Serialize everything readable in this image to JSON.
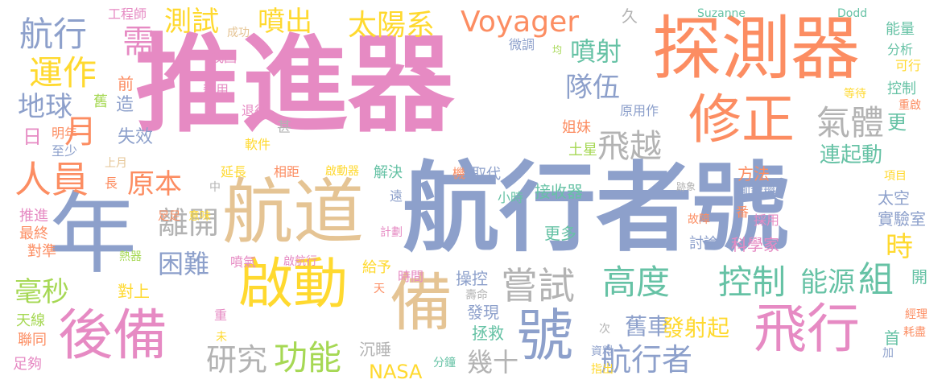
{
  "palette": {
    "pink": "#e68ac3",
    "blue": "#8da0cb",
    "orange": "#fc8d62",
    "green": "#66c2a5",
    "yellow": "#ffd92f",
    "tan": "#e5c494",
    "gray": "#b3b3b3",
    "lime": "#a6d854"
  },
  "words": [
    {
      "text": "推進器",
      "color": "pink"
    },
    {
      "text": "航行者號",
      "color": "blue"
    },
    {
      "text": "探測器",
      "color": "orange"
    },
    {
      "text": "航道",
      "color": "tan"
    },
    {
      "text": "年",
      "color": "blue"
    },
    {
      "text": "修正",
      "color": "orange"
    },
    {
      "text": "啟動",
      "color": "yellow"
    },
    {
      "text": "後備",
      "color": "pink"
    },
    {
      "text": "備",
      "color": "tan"
    },
    {
      "text": "號",
      "color": "blue"
    },
    {
      "text": "飛行",
      "color": "pink"
    },
    {
      "text": "高度",
      "color": "green"
    },
    {
      "text": "控制",
      "color": "green"
    },
    {
      "text": "Voyager",
      "color": "orange"
    },
    {
      "text": "太陽系",
      "color": "yellow"
    },
    {
      "text": "航行",
      "color": "blue"
    },
    {
      "text": "運作",
      "color": "yellow"
    },
    {
      "text": "需",
      "color": "pink"
    },
    {
      "text": "測試",
      "color": "yellow"
    },
    {
      "text": "噴出",
      "color": "yellow"
    },
    {
      "text": "飛越",
      "color": "gray"
    },
    {
      "text": "氣體",
      "color": "gray"
    },
    {
      "text": "噴射",
      "color": "green"
    },
    {
      "text": "隊伍",
      "color": "blue"
    },
    {
      "text": "地球",
      "color": "blue"
    },
    {
      "text": "月",
      "color": "orange"
    },
    {
      "text": "日",
      "color": "pink"
    },
    {
      "text": "人員",
      "color": "orange"
    },
    {
      "text": "原本",
      "color": "orange"
    },
    {
      "text": "離開",
      "color": "gray"
    },
    {
      "text": "困難",
      "color": "blue"
    },
    {
      "text": "嘗試",
      "color": "gray"
    },
    {
      "text": "能源",
      "color": "green"
    },
    {
      "text": "組",
      "color": "green"
    },
    {
      "text": "研究",
      "color": "gray"
    },
    {
      "text": "功能",
      "color": "lime"
    },
    {
      "text": "航行者",
      "color": "blue"
    },
    {
      "text": "舊車",
      "color": "blue"
    },
    {
      "text": "發射起",
      "color": "yellow"
    },
    {
      "text": "毫秒",
      "color": "lime"
    },
    {
      "text": "NASA",
      "color": "yellow"
    },
    {
      "text": "幾十",
      "color": "gray"
    },
    {
      "text": "時",
      "color": "yellow"
    },
    {
      "text": "更",
      "color": "green"
    },
    {
      "text": "久",
      "color": "gray"
    },
    {
      "text": "工程師",
      "color": "pink"
    },
    {
      "text": "成功",
      "color": "tan"
    },
    {
      "text": "找回",
      "color": "pink"
    },
    {
      "text": "前",
      "color": "orange"
    },
    {
      "text": "舊",
      "color": "lime"
    },
    {
      "text": "造",
      "color": "blue"
    },
    {
      "text": "耗用",
      "color": "pink"
    },
    {
      "text": "失效",
      "color": "blue"
    },
    {
      "text": "退役",
      "color": "pink"
    },
    {
      "text": "甚",
      "color": "gray"
    },
    {
      "text": "軟件",
      "color": "yellow"
    },
    {
      "text": "明年",
      "color": "orange"
    },
    {
      "text": "至少",
      "color": "blue"
    },
    {
      "text": "上月",
      "color": "tan"
    },
    {
      "text": "長",
      "color": "orange"
    },
    {
      "text": "延長",
      "color": "yellow"
    },
    {
      "text": "相距",
      "color": "orange"
    },
    {
      "text": "啟動器",
      "color": "yellow"
    },
    {
      "text": "中",
      "color": "gray"
    },
    {
      "text": "解決",
      "color": "green"
    },
    {
      "text": "機",
      "color": "orange"
    },
    {
      "text": "取代",
      "color": "blue"
    },
    {
      "text": "遠",
      "color": "blue"
    },
    {
      "text": "小時",
      "color": "green"
    },
    {
      "text": "接收器",
      "color": "green"
    },
    {
      "text": "微調",
      "color": "blue"
    },
    {
      "text": "均",
      "color": "lime"
    },
    {
      "text": "原用作",
      "color": "blue"
    },
    {
      "text": "姐妹",
      "color": "orange"
    },
    {
      "text": "土星",
      "color": "lime"
    },
    {
      "text": "連起動",
      "color": "green"
    },
    {
      "text": "跡象",
      "color": "gray"
    },
    {
      "text": "方法",
      "color": "orange"
    },
    {
      "text": "測試機",
      "color": "blue"
    },
    {
      "text": "太空",
      "color": "blue"
    },
    {
      "text": "番",
      "color": "orange"
    },
    {
      "text": "故障",
      "color": "orange"
    },
    {
      "text": "採用",
      "color": "pink"
    },
    {
      "text": "實驗室",
      "color": "blue"
    },
    {
      "text": "推進",
      "color": "pink"
    },
    {
      "text": "最終",
      "color": "orange"
    },
    {
      "text": "對準",
      "color": "orange"
    },
    {
      "text": "足足",
      "color": "orange"
    },
    {
      "text": "意味",
      "color": "yellow"
    },
    {
      "text": "熱器",
      "color": "lime"
    },
    {
      "text": "噴氣",
      "color": "pink"
    },
    {
      "text": "啟航行",
      "color": "pink"
    },
    {
      "text": "計劃",
      "color": "pink"
    },
    {
      "text": "更多",
      "color": "green"
    },
    {
      "text": "討論",
      "color": "blue"
    },
    {
      "text": "科學家",
      "color": "pink"
    },
    {
      "text": "給予",
      "color": "yellow"
    },
    {
      "text": "對上",
      "color": "yellow"
    },
    {
      "text": "天",
      "color": "orange"
    },
    {
      "text": "時間",
      "color": "pink"
    },
    {
      "text": "操控",
      "color": "blue"
    },
    {
      "text": "開",
      "color": "green"
    },
    {
      "text": "壽命",
      "color": "gray"
    },
    {
      "text": "發現",
      "color": "blue"
    },
    {
      "text": "拯救",
      "color": "green"
    },
    {
      "text": "經理",
      "color": "orange"
    },
    {
      "text": "耗盡",
      "color": "orange"
    },
    {
      "text": "首",
      "color": "green"
    },
    {
      "text": "加",
      "color": "blue"
    },
    {
      "text": "天線",
      "color": "lime"
    },
    {
      "text": "聯同",
      "color": "orange"
    },
    {
      "text": "足夠",
      "color": "pink"
    },
    {
      "text": "重",
      "color": "pink"
    },
    {
      "text": "未",
      "color": "yellow"
    },
    {
      "text": "沉睡",
      "color": "gray"
    },
    {
      "text": "次",
      "color": "gray"
    },
    {
      "text": "資料",
      "color": "blue"
    },
    {
      "text": "分鐘",
      "color": "green"
    },
    {
      "text": "指出",
      "color": "yellow"
    },
    {
      "text": "Suzanne",
      "color": "green"
    },
    {
      "text": "Dodd",
      "color": "green"
    },
    {
      "text": "能量",
      "color": "green"
    },
    {
      "text": "分析",
      "color": "green"
    },
    {
      "text": "可行",
      "color": "yellow"
    },
    {
      "text": "控制",
      "color": "green"
    },
    {
      "text": "等待",
      "color": "yellow"
    },
    {
      "text": "重啟",
      "color": "orange"
    },
    {
      "text": "項目",
      "color": "yellow"
    }
  ]
}
